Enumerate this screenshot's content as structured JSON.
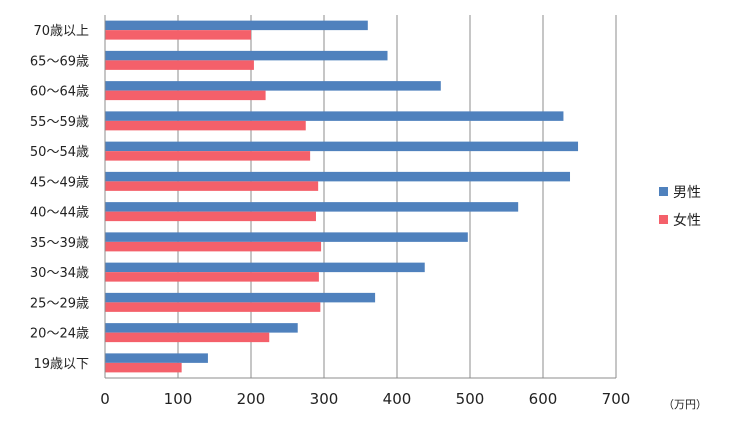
{
  "chart_data": {
    "type": "bar",
    "orientation": "horizontal",
    "categories": [
      "70歳以上",
      "65〜69歳",
      "60〜64歳",
      "55〜59歳",
      "50〜54歳",
      "45〜49歳",
      "40〜44歳",
      "35〜39歳",
      "30〜34歳",
      "25〜29歳",
      "20〜24歳",
      "19歳以下"
    ],
    "series": [
      {
        "name": "男性",
        "color": "#4f81bd",
        "values": [
          360,
          387,
          460,
          628,
          648,
          637,
          566,
          497,
          438,
          370,
          264,
          141
        ]
      },
      {
        "name": "女性",
        "color": "#f4606a",
        "values": [
          200,
          204,
          220,
          275,
          281,
          292,
          289,
          296,
          293,
          295,
          225,
          105
        ]
      }
    ],
    "x_ticks": [
      "0",
      "100",
      "200",
      "300",
      "400",
      "500",
      "600",
      "700"
    ],
    "xlim": [
      0,
      700
    ],
    "unit_label": "（万円）",
    "legend_position": "right",
    "grid": {
      "vertical": true,
      "horizontal": false
    }
  }
}
